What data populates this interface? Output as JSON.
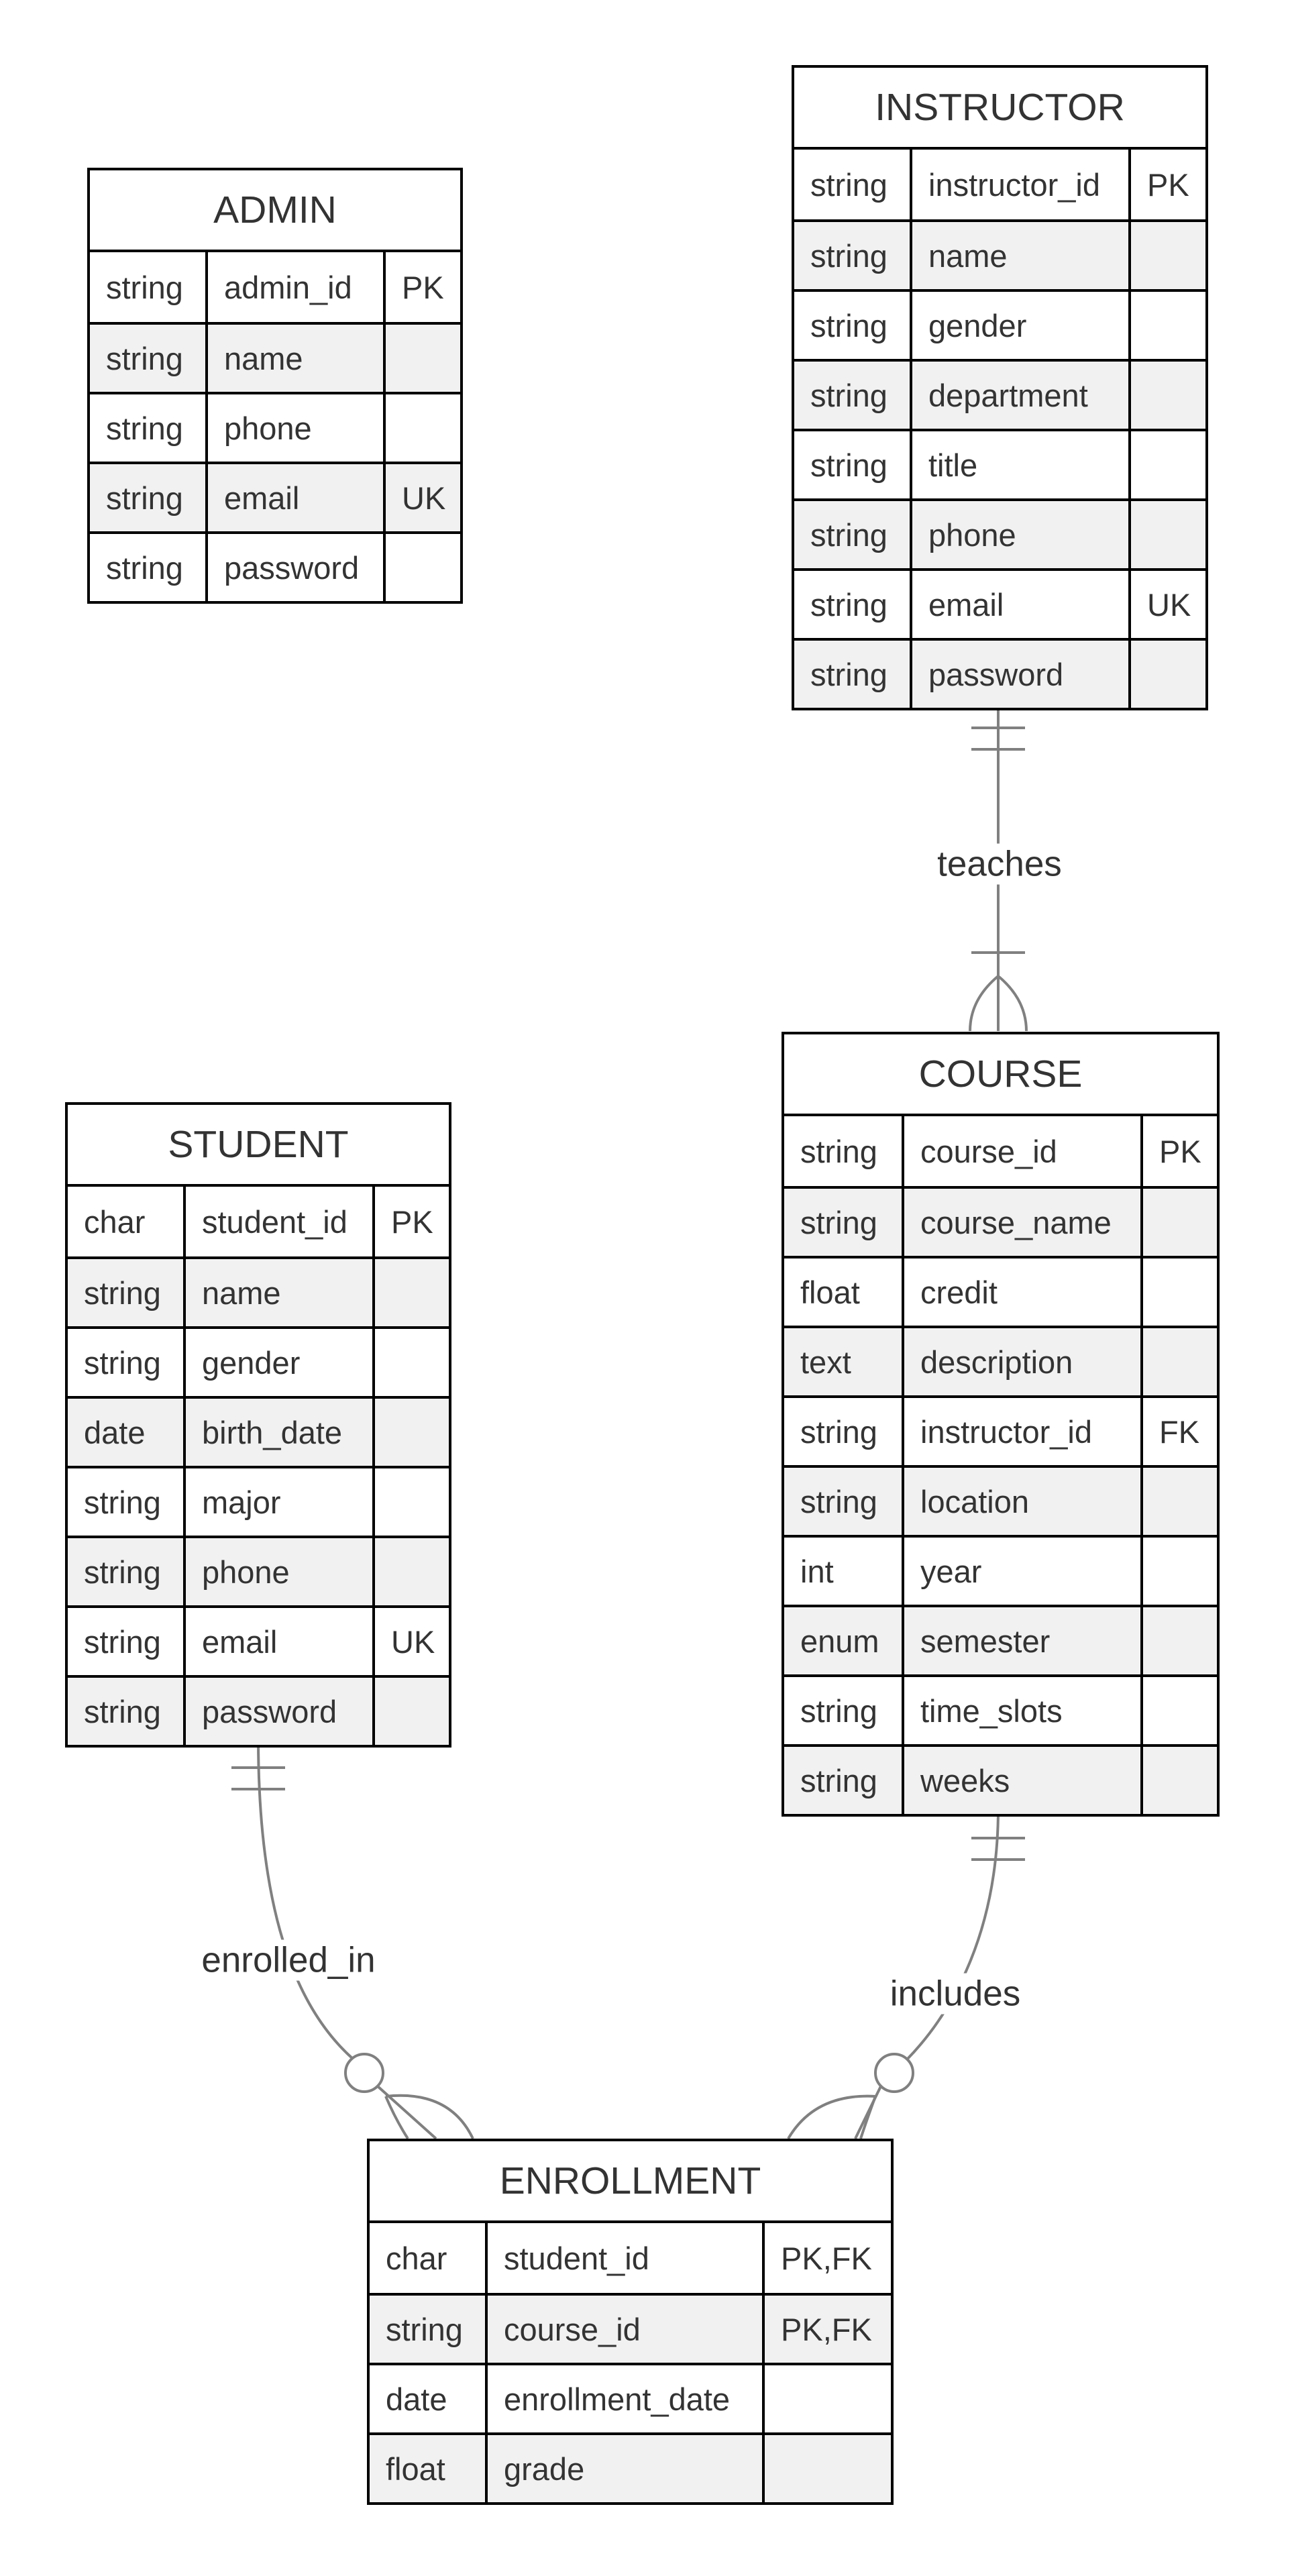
{
  "diagram": {
    "entities": {
      "admin": {
        "name": "ADMIN",
        "attributes": [
          {
            "type": "string",
            "name": "admin_id",
            "key": "PK"
          },
          {
            "type": "string",
            "name": "name",
            "key": ""
          },
          {
            "type": "string",
            "name": "phone",
            "key": ""
          },
          {
            "type": "string",
            "name": "email",
            "key": "UK"
          },
          {
            "type": "string",
            "name": "password",
            "key": ""
          }
        ]
      },
      "instructor": {
        "name": "INSTRUCTOR",
        "attributes": [
          {
            "type": "string",
            "name": "instructor_id",
            "key": "PK"
          },
          {
            "type": "string",
            "name": "name",
            "key": ""
          },
          {
            "type": "string",
            "name": "gender",
            "key": ""
          },
          {
            "type": "string",
            "name": "department",
            "key": ""
          },
          {
            "type": "string",
            "name": "title",
            "key": ""
          },
          {
            "type": "string",
            "name": "phone",
            "key": ""
          },
          {
            "type": "string",
            "name": "email",
            "key": "UK"
          },
          {
            "type": "string",
            "name": "password",
            "key": ""
          }
        ]
      },
      "student": {
        "name": "STUDENT",
        "attributes": [
          {
            "type": "char",
            "name": "student_id",
            "key": "PK"
          },
          {
            "type": "string",
            "name": "name",
            "key": ""
          },
          {
            "type": "string",
            "name": "gender",
            "key": ""
          },
          {
            "type": "date",
            "name": "birth_date",
            "key": ""
          },
          {
            "type": "string",
            "name": "major",
            "key": ""
          },
          {
            "type": "string",
            "name": "phone",
            "key": ""
          },
          {
            "type": "string",
            "name": "email",
            "key": "UK"
          },
          {
            "type": "string",
            "name": "password",
            "key": ""
          }
        ]
      },
      "course": {
        "name": "COURSE",
        "attributes": [
          {
            "type": "string",
            "name": "course_id",
            "key": "PK"
          },
          {
            "type": "string",
            "name": "course_name",
            "key": ""
          },
          {
            "type": "float",
            "name": "credit",
            "key": ""
          },
          {
            "type": "text",
            "name": "description",
            "key": ""
          },
          {
            "type": "string",
            "name": "instructor_id",
            "key": "FK"
          },
          {
            "type": "string",
            "name": "location",
            "key": ""
          },
          {
            "type": "int",
            "name": "year",
            "key": ""
          },
          {
            "type": "enum",
            "name": "semester",
            "key": ""
          },
          {
            "type": "string",
            "name": "time_slots",
            "key": ""
          },
          {
            "type": "string",
            "name": "weeks",
            "key": ""
          }
        ]
      },
      "enrollment": {
        "name": "ENROLLMENT",
        "attributes": [
          {
            "type": "char",
            "name": "student_id",
            "key": "PK,FK"
          },
          {
            "type": "string",
            "name": "course_id",
            "key": "PK,FK"
          },
          {
            "type": "date",
            "name": "enrollment_date",
            "key": ""
          },
          {
            "type": "float",
            "name": "grade",
            "key": ""
          }
        ]
      }
    },
    "relationships": {
      "teaches": {
        "label": "teaches",
        "from": "INSTRUCTOR",
        "to": "COURSE",
        "from_cardinality": "exactly-one",
        "to_cardinality": "one-or-many"
      },
      "enrolled_in": {
        "label": "enrolled_in",
        "from": "STUDENT",
        "to": "ENROLLMENT",
        "from_cardinality": "exactly-one",
        "to_cardinality": "zero-or-many"
      },
      "includes": {
        "label": "includes",
        "from": "COURSE",
        "to": "ENROLLMENT",
        "from_cardinality": "exactly-one",
        "to_cardinality": "zero-or-many"
      }
    },
    "colors": {
      "line": "#808080",
      "border": "#000000",
      "text": "#333333",
      "alt_row": "#f1f1f1"
    }
  }
}
